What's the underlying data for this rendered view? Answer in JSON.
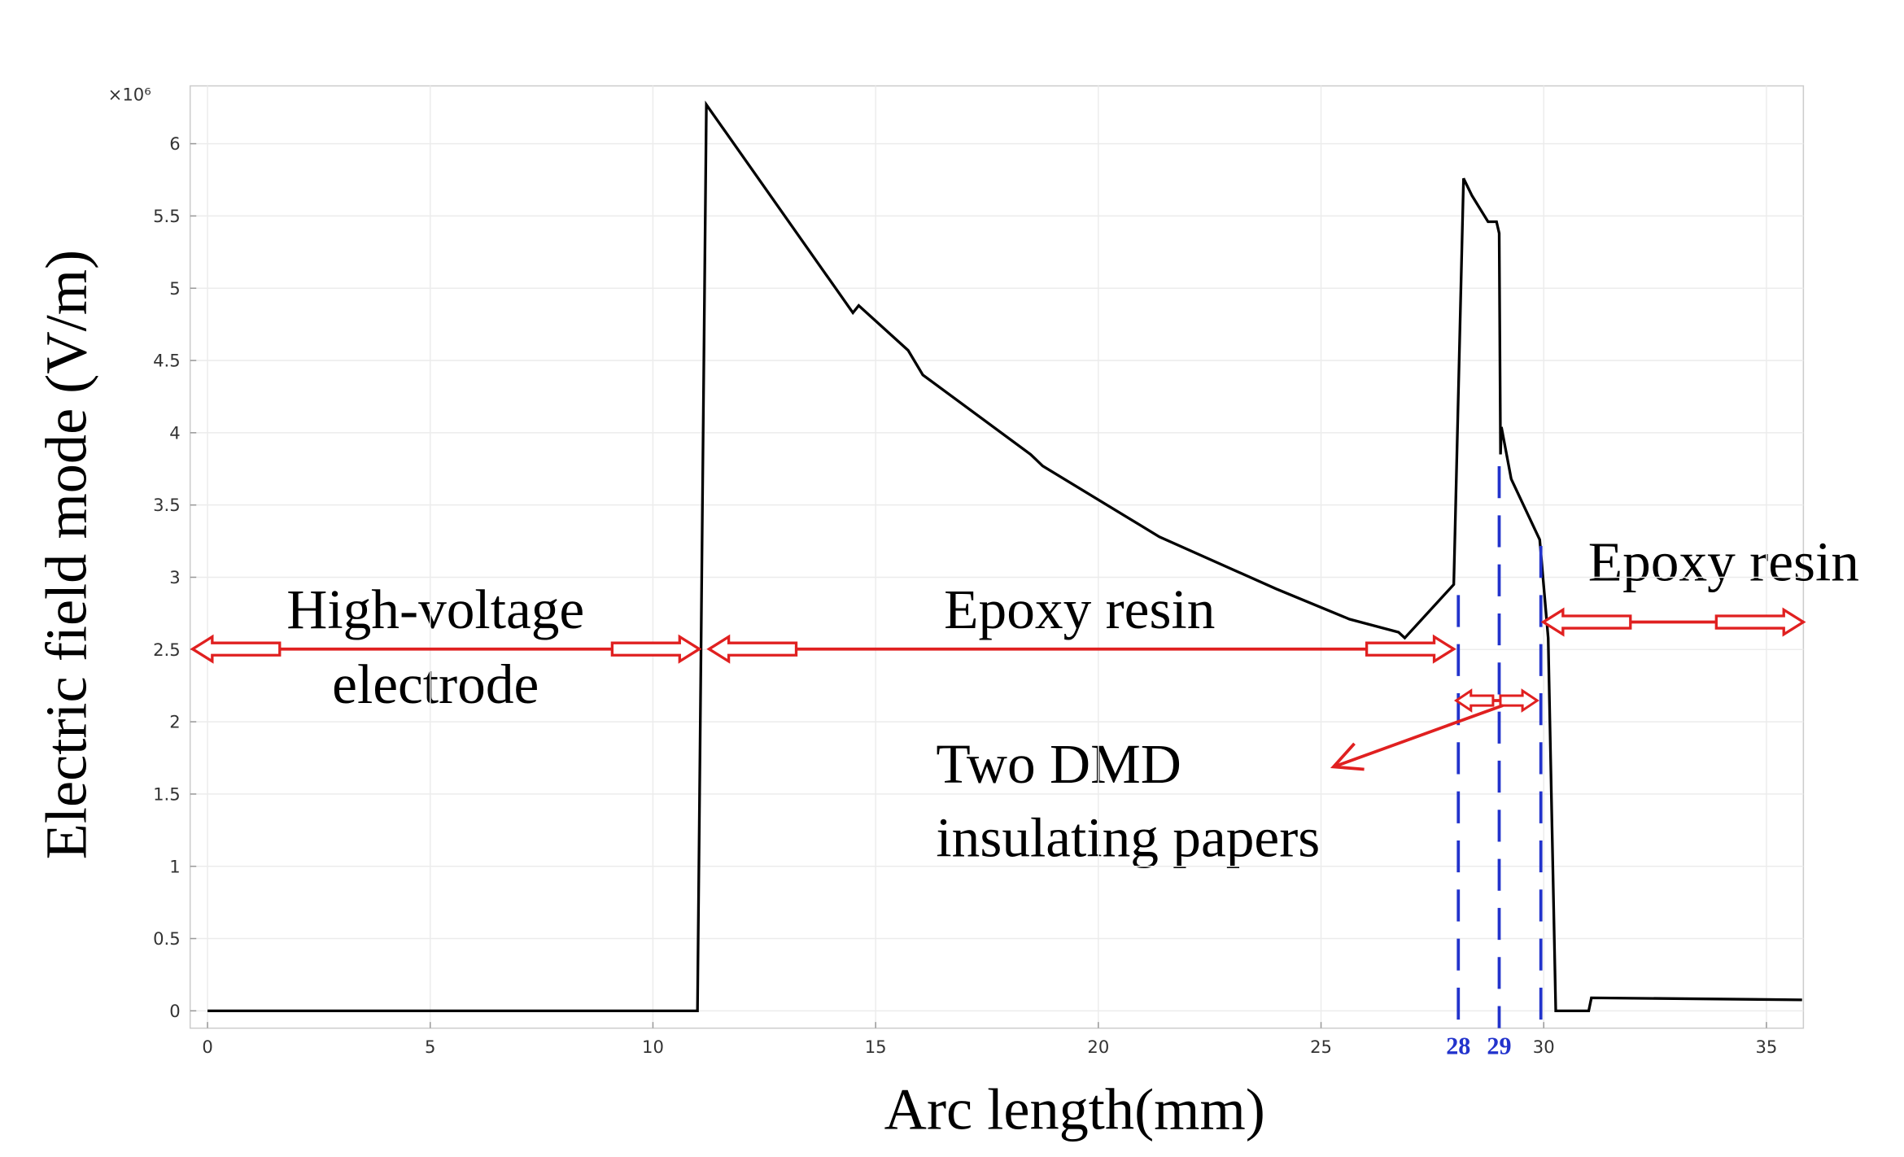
{
  "chart_data": {
    "type": "line",
    "x_label": "Arc length(mm)",
    "y_label": "Electric field mode (V/m)",
    "y_multiplier": "×10⁶",
    "xlim": [
      -0.39,
      35.83
    ],
    "ylim": [
      -0.12,
      6.4
    ],
    "xticks": [
      0,
      5,
      10,
      15,
      20,
      25,
      30,
      35
    ],
    "yticks": [
      0,
      0.5,
      1,
      1.5,
      2,
      2.5,
      3,
      3.5,
      4,
      4.5,
      5,
      5.5,
      6
    ],
    "grid": true,
    "series": [
      {
        "color": "#000000",
        "x": [
          0,
          11,
          11.2,
          14.49,
          14.62,
          15.73,
          16.06,
          18.48,
          18.75,
          21.37,
          23.99,
          25.64,
          26.74,
          26.88,
          27.98,
          28.2,
          28.39,
          28.75,
          28.94,
          29.0,
          29.03,
          29.05,
          29.27,
          29.91,
          30.1,
          30.27,
          31.01,
          31.07,
          35.8
        ],
        "values": [
          0,
          0,
          6.27,
          4.83,
          4.88,
          4.57,
          4.4,
          3.85,
          3.77,
          3.28,
          2.92,
          2.71,
          2.62,
          2.58,
          2.95,
          5.76,
          5.64,
          5.46,
          5.46,
          5.38,
          3.85,
          4.04,
          3.68,
          3.26,
          2.58,
          0,
          0,
          0.09,
          0.076
        ]
      }
    ],
    "boundary_labels": [
      28,
      29
    ],
    "boundary_color": "#2233cc",
    "annotations": [
      {
        "lines": [
          "High-voltage",
          "electrode"
        ]
      },
      {
        "lines": [
          "Epoxy resin"
        ]
      },
      {
        "lines": [
          "Two DMD",
          "insulating papers"
        ]
      },
      {
        "lines": [
          "Epoxy resin"
        ]
      }
    ]
  }
}
